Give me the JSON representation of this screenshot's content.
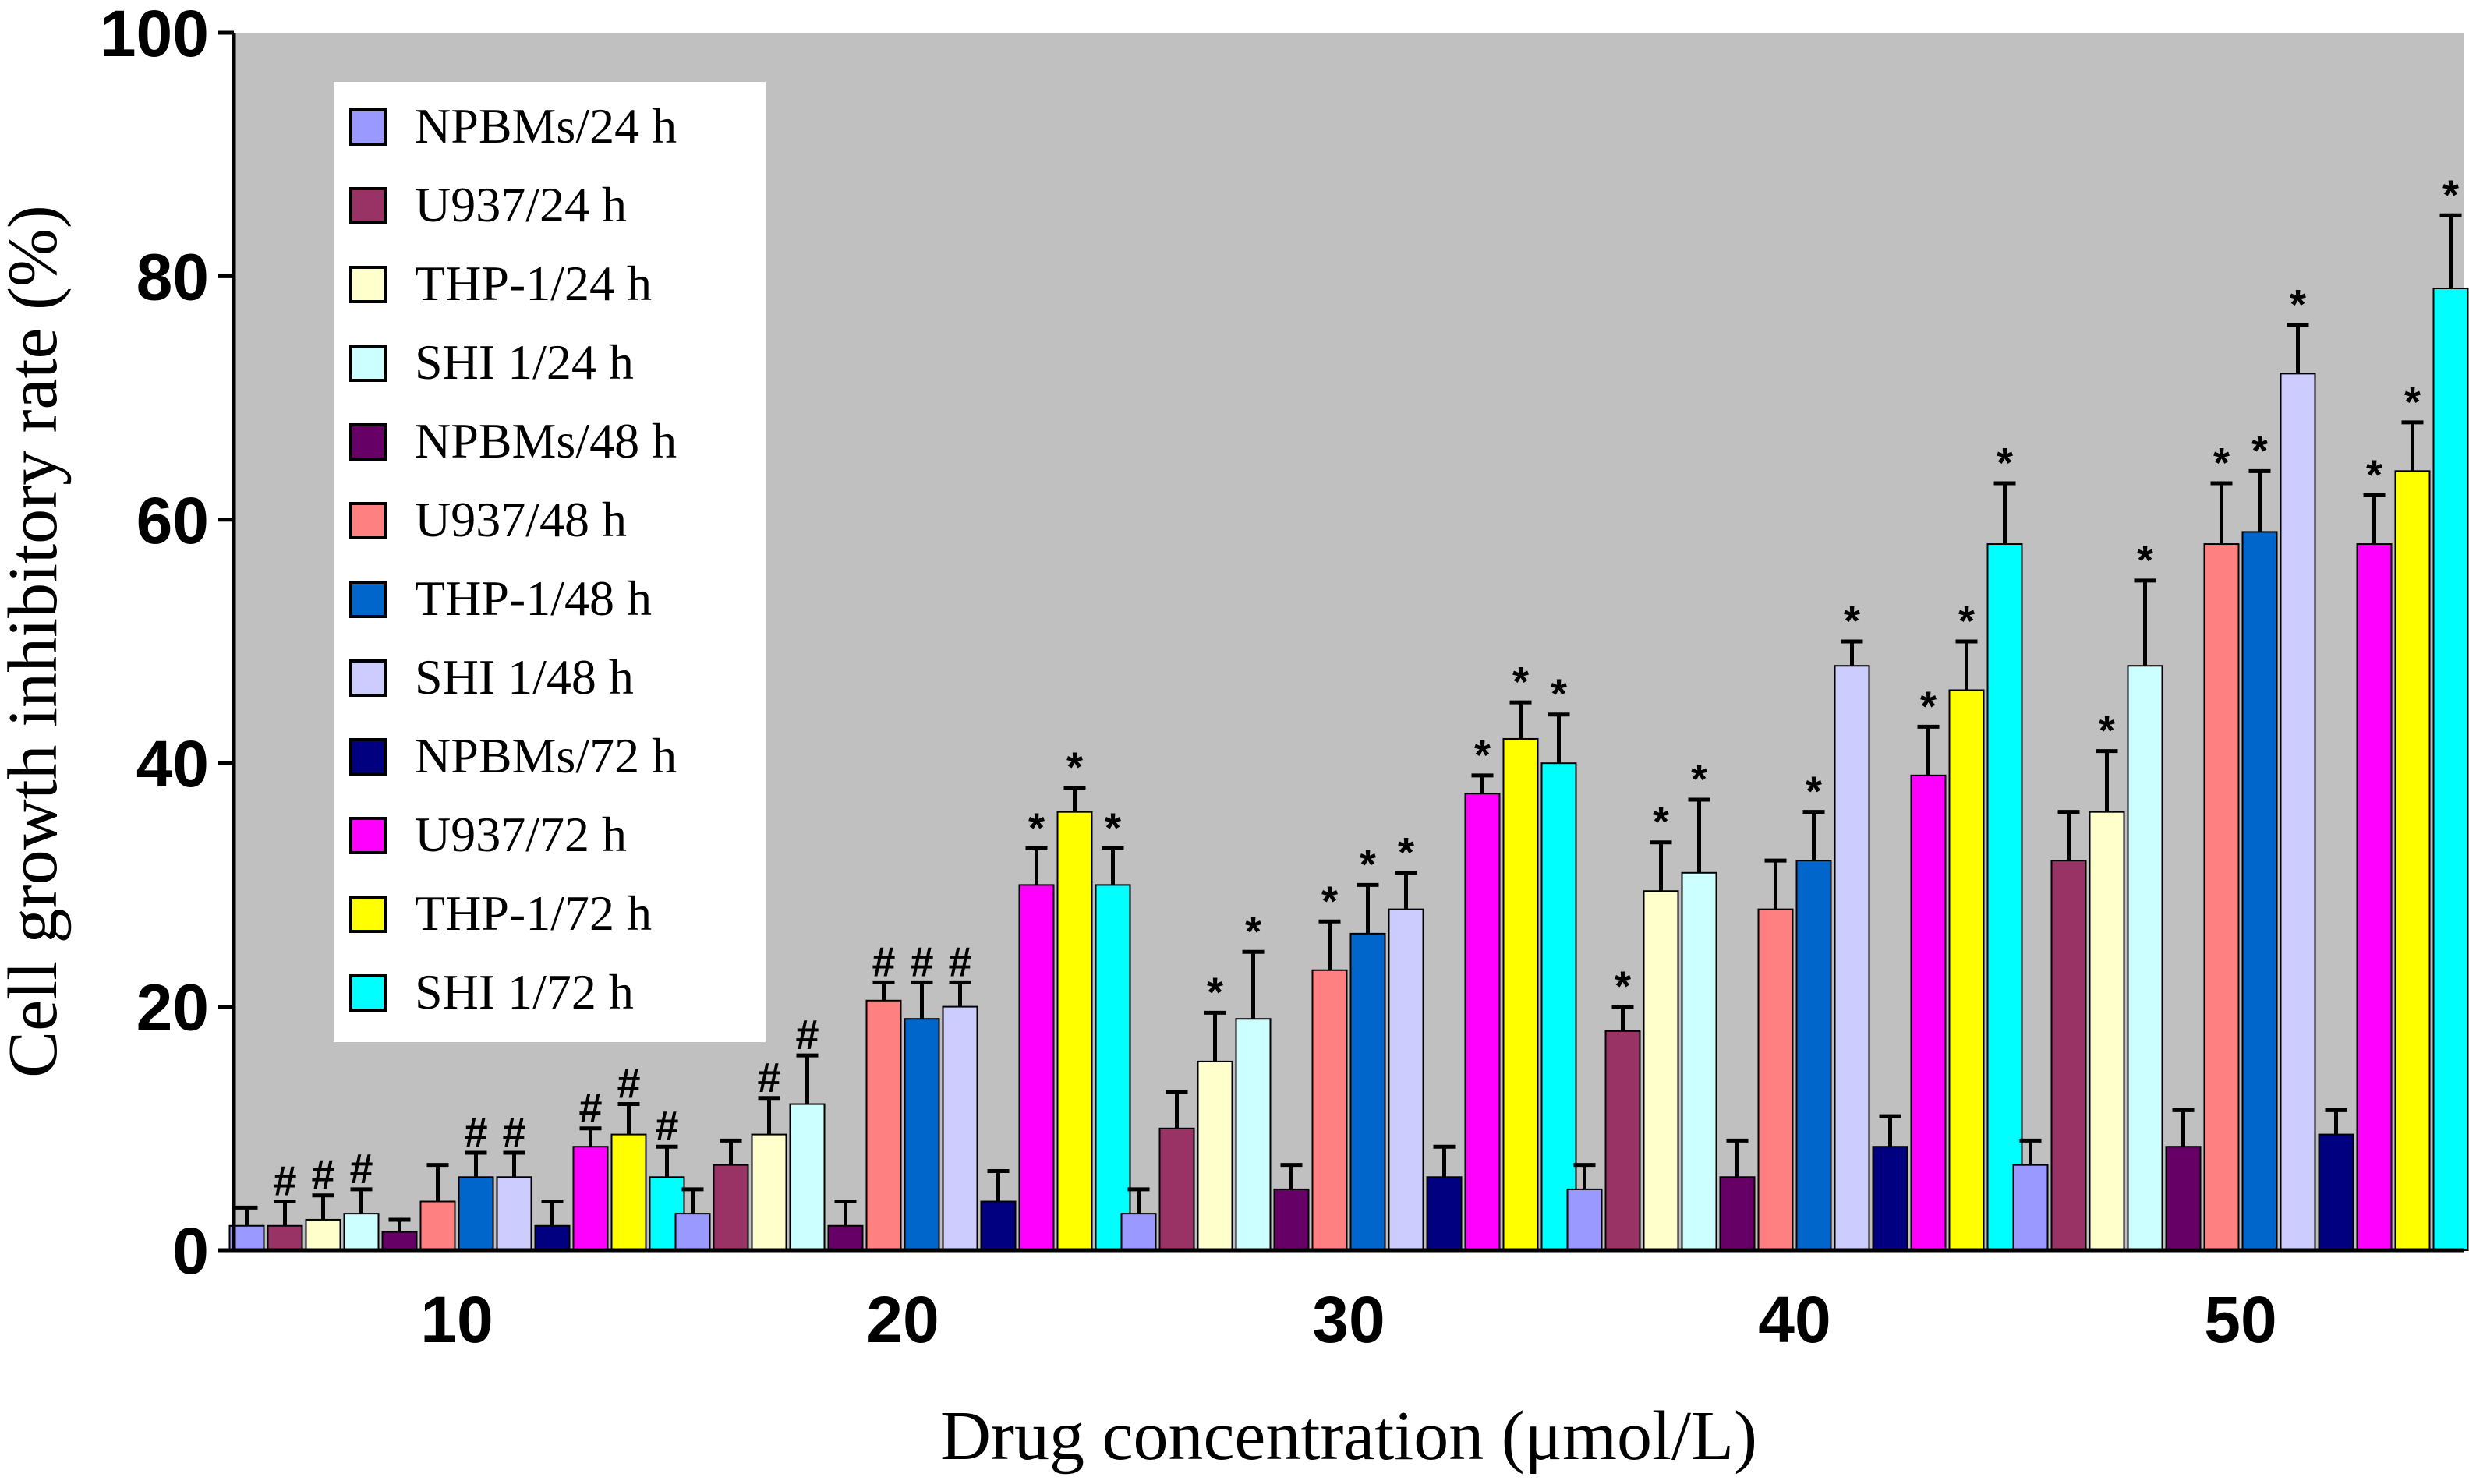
{
  "chart_data": {
    "type": "bar",
    "title": "",
    "xlabel": "Drug concentration (μmol/L)",
    "ylabel": "Cell growth inhibitory rate (%)",
    "ylim": [
      0,
      100
    ],
    "yticks": [
      0,
      20,
      40,
      60,
      80,
      100
    ],
    "grid": false,
    "legend_position": "top-left",
    "background": "#c0c0c0",
    "categories": [
      "10",
      "20",
      "30",
      "40",
      "50"
    ],
    "series": [
      {
        "name": "NPBMs/24 h",
        "color": "#9999ff",
        "values": [
          2,
          3,
          3,
          5,
          7
        ],
        "errors": [
          1.5,
          2,
          2,
          2,
          2
        ],
        "marks": [
          "",
          "",
          "",
          "",
          ""
        ]
      },
      {
        "name": "U937/24 h",
        "color": "#993366",
        "values": [
          2,
          7,
          10,
          18,
          32
        ],
        "errors": [
          2,
          2,
          3,
          2,
          4
        ],
        "marks": [
          "#",
          "",
          "",
          "*",
          ""
        ]
      },
      {
        "name": "THP-1/24 h",
        "color": "#ffffcc",
        "values": [
          2.5,
          9.5,
          15.5,
          29.5,
          36
        ],
        "errors": [
          2,
          3,
          4,
          4,
          5
        ],
        "marks": [
          "#",
          "#",
          "*",
          "*",
          "*"
        ]
      },
      {
        "name": "SHI 1/24 h",
        "color": "#ccffff",
        "values": [
          3,
          12,
          19,
          31,
          48
        ],
        "errors": [
          2,
          4,
          5.5,
          6,
          7
        ],
        "marks": [
          "#",
          "#",
          "*",
          "*",
          "*"
        ]
      },
      {
        "name": "NPBMs/48 h",
        "color": "#660066",
        "values": [
          1.5,
          2,
          5,
          6,
          8.5
        ],
        "errors": [
          1,
          2,
          2,
          3,
          3
        ],
        "marks": [
          "",
          "",
          "",
          "",
          ""
        ]
      },
      {
        "name": "U937/48 h",
        "color": "#ff8080",
        "values": [
          4,
          20.5,
          23,
          28,
          58
        ],
        "errors": [
          3,
          1.5,
          4,
          4,
          5
        ],
        "marks": [
          "",
          "#",
          "*",
          "",
          "*"
        ]
      },
      {
        "name": "THP-1/48 h",
        "color": "#0066cc",
        "values": [
          6,
          19,
          26,
          32,
          59
        ],
        "errors": [
          2,
          3,
          4,
          4,
          5
        ],
        "marks": [
          "#",
          "#",
          "*",
          "*",
          "*"
        ]
      },
      {
        "name": "SHI 1/48 h",
        "color": "#ccccff",
        "values": [
          6,
          20,
          28,
          48,
          72
        ],
        "errors": [
          2,
          2,
          3,
          2,
          4
        ],
        "marks": [
          "#",
          "#",
          "*",
          "*",
          "*"
        ]
      },
      {
        "name": "NPBMs/72 h",
        "color": "#000080",
        "values": [
          2,
          4,
          6,
          8.5,
          9.5
        ],
        "errors": [
          2,
          2.5,
          2.5,
          2.5,
          2
        ],
        "marks": [
          "",
          "",
          "",
          "",
          ""
        ]
      },
      {
        "name": "U937/72 h",
        "color": "#ff00ff",
        "values": [
          8.5,
          30,
          37.5,
          39,
          58
        ],
        "errors": [
          1.5,
          3,
          1.5,
          4,
          4
        ],
        "marks": [
          "#",
          "*",
          "*",
          "*",
          "*"
        ]
      },
      {
        "name": "THP-1/72 h",
        "color": "#ffff00",
        "values": [
          9.5,
          36,
          42,
          46,
          64
        ],
        "errors": [
          2.5,
          2,
          3,
          4,
          4
        ],
        "marks": [
          "#",
          "*",
          "*",
          "*",
          "*"
        ]
      },
      {
        "name": "SHI 1/72 h",
        "color": "#00ffff",
        "values": [
          6,
          30,
          40,
          58,
          79
        ],
        "errors": [
          2.5,
          3,
          4,
          5,
          6
        ],
        "marks": [
          "#",
          "*",
          "*",
          "*",
          "*"
        ]
      }
    ]
  }
}
